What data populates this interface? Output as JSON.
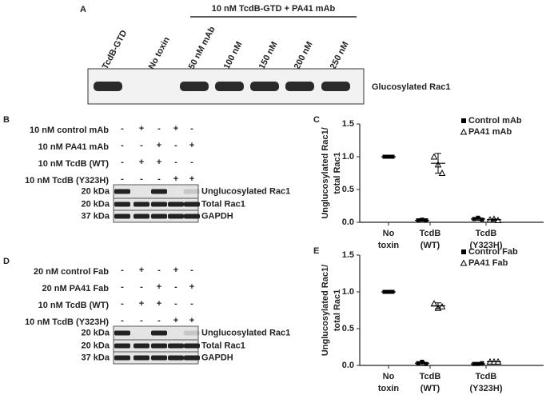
{
  "panel_a": {
    "letter": "A",
    "header": "10 nM TcdB-GTD + PA41 mAb",
    "lanes": [
      "TcdB-GTD",
      "No toxin",
      "50 nM mAb",
      "100 nM",
      "150 nM",
      "200 nM",
      "250 nM"
    ],
    "band_label": "Glucosylated Rac1"
  },
  "panel_b": {
    "letter": "B",
    "conditions": [
      {
        "label": "10 nM control mAb",
        "signs": [
          "-",
          "+",
          "-",
          "+",
          "-"
        ]
      },
      {
        "label": "10 nM PA41 mAb",
        "signs": [
          "-",
          "-",
          "+",
          "-",
          "+"
        ]
      },
      {
        "label": "10 nM TcdB (WT)",
        "signs": [
          "-",
          "+",
          "+",
          "-",
          "-"
        ]
      },
      {
        "label": "10 nM TcdB (Y323H)",
        "signs": [
          "-",
          "-",
          "-",
          "+",
          "+"
        ]
      }
    ],
    "blots": [
      {
        "marker": "20 kDa",
        "label": "Unglucosylated Rac1"
      },
      {
        "marker": "20 kDa",
        "label": "Total Rac1"
      },
      {
        "marker": "37 kDa",
        "label": "GAPDH"
      }
    ]
  },
  "panel_d": {
    "letter": "D",
    "conditions": [
      {
        "label": "20 nM control Fab",
        "signs": [
          "-",
          "+",
          "-",
          "+",
          "-"
        ]
      },
      {
        "label": "20 nM PA41 Fab",
        "signs": [
          "-",
          "-",
          "+",
          "-",
          "+"
        ]
      },
      {
        "label": "10 nM TcdB (WT)",
        "signs": [
          "-",
          "+",
          "+",
          "-",
          "-"
        ]
      },
      {
        "label": "10 nM TcdB (Y323H)",
        "signs": [
          "-",
          "-",
          "-",
          "+",
          "+"
        ]
      }
    ],
    "blots": [
      {
        "marker": "20 kDa",
        "label": "Unglucosylated Rac1"
      },
      {
        "marker": "20 kDa",
        "label": "Total Rac1"
      },
      {
        "marker": "37 kDa",
        "label": "GAPDH"
      }
    ]
  },
  "chart_data": [
    {
      "type": "scatter",
      "panel_label": "C",
      "y_label": [
        "Unglucosylated Rac1/",
        "total Rac1"
      ],
      "categories": [
        [
          "No",
          "toxin"
        ],
        [
          "TcdB",
          "(WT)"
        ],
        [
          "TcdB",
          "(Y323H)"
        ]
      ],
      "ylim": [
        0,
        1.5
      ],
      "yticks": [
        {
          "value": 0,
          "label": "0.0"
        },
        {
          "value": 0.5,
          "label": "0.5"
        },
        {
          "value": 1,
          "label": "1.0"
        },
        {
          "value": 1.5,
          "label": "1.5"
        }
      ],
      "series": [
        {
          "name": "Control mAb",
          "color": "#000000",
          "marker": "square",
          "values": [
            [
              1,
              1,
              1
            ],
            [
              0.03,
              0.04,
              0.03
            ],
            [
              0.05,
              0.07,
              0.04
            ]
          ],
          "mean": [
            1,
            0.03,
            0.05
          ],
          "error": [
            0,
            0.01,
            0.02
          ]
        },
        {
          "name": "PA41 mAb",
          "color": "#000000",
          "marker": "triangle",
          "values": [
            null,
            [
              1.0,
              0.88,
              0.75
            ],
            [
              0.04,
              0.05,
              0.03
            ]
          ],
          "mean": [
            null,
            0.9,
            0.04
          ],
          "error": [
            null,
            0.15,
            0.01
          ]
        }
      ]
    },
    {
      "type": "scatter",
      "panel_label": "E",
      "y_label": [
        "Unglucosylated Rac1/",
        "total Rac1"
      ],
      "categories": [
        [
          "No",
          "toxin"
        ],
        [
          "TcdB",
          "(WT)"
        ],
        [
          "TcdB",
          "(Y323H)"
        ]
      ],
      "ylim": [
        0,
        1.5
      ],
      "yticks": [
        {
          "value": 0,
          "label": "0.0"
        },
        {
          "value": 0.5,
          "label": "0.5"
        },
        {
          "value": 1,
          "label": "1.0"
        },
        {
          "value": 1.5,
          "label": "1.5"
        }
      ],
      "series": [
        {
          "name": "Control Fab",
          "color": "#000000",
          "marker": "square",
          "values": [
            [
              1,
              1,
              1
            ],
            [
              0.03,
              0.05,
              0.02
            ],
            [
              0.02,
              0.02,
              0.03
            ]
          ],
          "mean": [
            1,
            0.03,
            0.02
          ],
          "error": [
            0,
            0.02,
            0.01
          ]
        },
        {
          "name": "PA41 Fab",
          "color": "#000000",
          "marker": "triangle",
          "values": [
            null,
            [
              0.84,
              0.78,
              0.8
            ],
            [
              0.05,
              0.05,
              0.05
            ]
          ],
          "mean": [
            null,
            0.81,
            0.05
          ],
          "error": [
            null,
            0.04,
            0
          ]
        }
      ]
    }
  ]
}
